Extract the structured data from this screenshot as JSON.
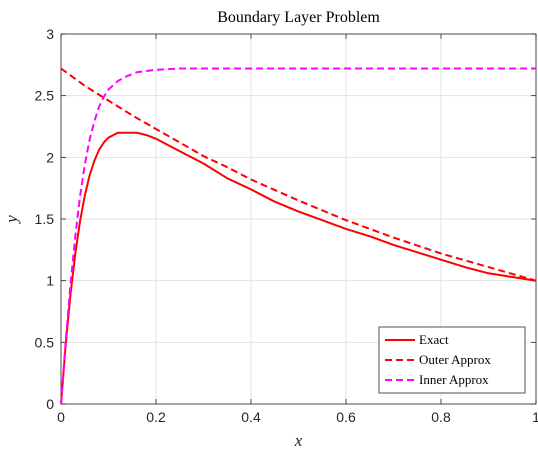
{
  "chart_data": {
    "type": "line",
    "title": "Boundary Layer Problem",
    "xlabel": "x",
    "ylabel": "y",
    "xlim": [
      0,
      1
    ],
    "ylim": [
      0,
      3
    ],
    "xticks": [
      0,
      0.2,
      0.4,
      0.6,
      0.8,
      1
    ],
    "xtick_labels": [
      "0",
      "0.2",
      "0.4",
      "0.6",
      "0.8",
      "1"
    ],
    "yticks": [
      0,
      0.5,
      1,
      1.5,
      2,
      2.5,
      3
    ],
    "ytick_labels": [
      "0",
      "0.5",
      "1",
      "1.5",
      "2",
      "2.5",
      "3"
    ],
    "grid": true,
    "legend_position": "bottom-right",
    "series": [
      {
        "name": "Exact",
        "color": "#ff0000",
        "style": "solid",
        "x": [
          0,
          0.01,
          0.02,
          0.03,
          0.04,
          0.05,
          0.06,
          0.07,
          0.08,
          0.09,
          0.1,
          0.12,
          0.14,
          0.16,
          0.18,
          0.2,
          0.25,
          0.3,
          0.35,
          0.4,
          0.45,
          0.5,
          0.55,
          0.6,
          0.65,
          0.7,
          0.75,
          0.8,
          0.85,
          0.9,
          0.95,
          1
        ],
        "y": [
          0,
          0.49,
          0.89,
          1.22,
          1.48,
          1.69,
          1.85,
          1.97,
          2.06,
          2.12,
          2.16,
          2.2,
          2.2,
          2.2,
          2.18,
          2.15,
          2.05,
          1.95,
          1.83,
          1.74,
          1.64,
          1.56,
          1.49,
          1.42,
          1.36,
          1.29,
          1.23,
          1.17,
          1.11,
          1.06,
          1.03,
          1.0
        ]
      },
      {
        "name": "Outer Approx",
        "color": "#ff0000",
        "style": "dashed",
        "x": [
          0,
          0.05,
          0.1,
          0.15,
          0.2,
          0.25,
          0.3,
          0.35,
          0.4,
          0.5,
          0.6,
          0.7,
          0.8,
          0.9,
          1
        ],
        "y": [
          2.72,
          2.58,
          2.46,
          2.34,
          2.23,
          2.12,
          2.01,
          1.92,
          1.82,
          1.65,
          1.49,
          1.35,
          1.22,
          1.11,
          1.0
        ]
      },
      {
        "name": "Inner Approx",
        "color": "#ff00ff",
        "style": "dashed",
        "x": [
          0,
          0.01,
          0.02,
          0.03,
          0.04,
          0.05,
          0.06,
          0.07,
          0.08,
          0.09,
          0.1,
          0.12,
          0.14,
          0.16,
          0.18,
          0.2,
          0.25,
          0.3,
          0.4,
          0.6,
          0.8,
          1
        ],
        "y": [
          0,
          0.52,
          0.97,
          1.36,
          1.68,
          1.94,
          2.14,
          2.29,
          2.41,
          2.49,
          2.55,
          2.62,
          2.66,
          2.69,
          2.7,
          2.71,
          2.72,
          2.72,
          2.72,
          2.72,
          2.72,
          2.72
        ]
      }
    ]
  }
}
